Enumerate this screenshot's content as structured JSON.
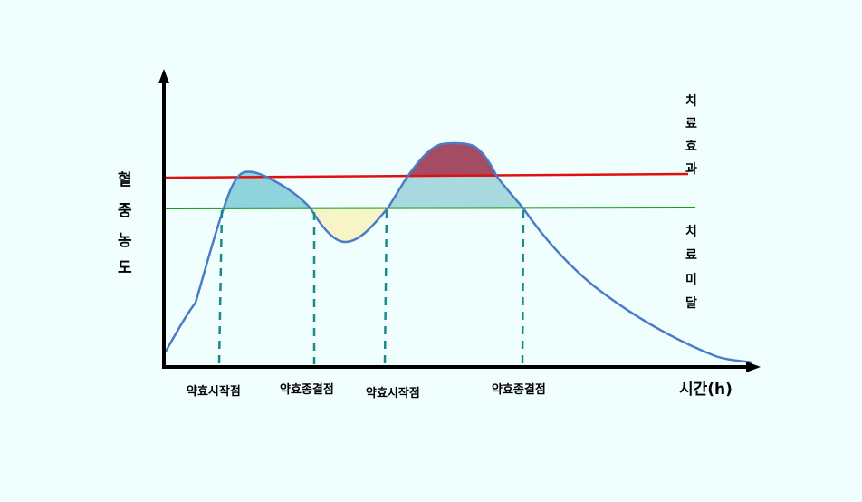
{
  "y_axis_label_chars": [
    "혈",
    "중",
    "농",
    "도"
  ],
  "threshold_labels": {
    "upper_chars": [
      "치",
      "료",
      "효",
      "과"
    ],
    "lower_chars": [
      "치",
      "료",
      "미",
      "달"
    ]
  },
  "x_axis_label": "시간(h)",
  "x_markers": [
    "약효시작점",
    "약효종결점",
    "약효시작점",
    "약효종결점"
  ],
  "colors": {
    "background": "#f0fffe",
    "curve": "#4a7cc7",
    "upper_line": "#e01010",
    "lower_line": "#1a9a1a",
    "fill_therapeutic": "#8fd3dc",
    "fill_subtherapeutic": "#f7f5c8",
    "fill_toxic": "#a44c64",
    "marker_dash": "#1a8a8a",
    "axis": "#000000"
  }
}
